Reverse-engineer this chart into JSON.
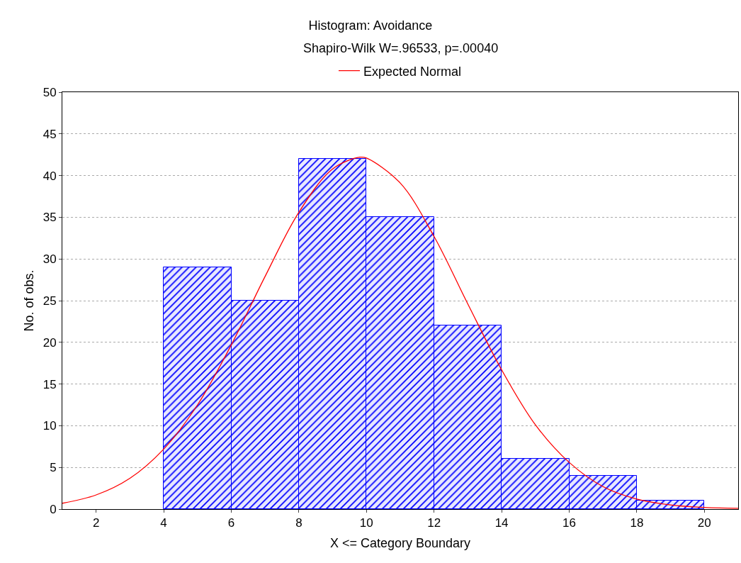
{
  "chart_data": {
    "type": "histogram",
    "title": "Histogram: Avoidance",
    "subtitle": "Shapiro-Wilk W=.96533, p=.00040",
    "xlabel": "X <= Category Boundary",
    "ylabel": "No. of obs.",
    "bins": [
      4,
      6,
      8,
      10,
      12,
      14,
      16,
      18,
      20
    ],
    "values": [
      29,
      25,
      42,
      35,
      22,
      6,
      4,
      1
    ],
    "color": "#0000ff",
    "series": [
      {
        "type": "line",
        "name": "Expected Normal",
        "color": "#ff0000",
        "x": [
          1,
          2,
          3,
          4,
          5,
          6,
          7,
          8,
          9,
          9.8,
          10,
          11,
          12,
          13,
          14,
          15,
          16,
          17,
          18,
          19,
          20,
          21
        ],
        "values": [
          0.7,
          1.7,
          3.7,
          7.2,
          12.5,
          19.7,
          27.9,
          35.6,
          40.8,
          42.2,
          42.1,
          39.1,
          32.7,
          24.6,
          16.7,
          10.1,
          5.6,
          2.7,
          1.2,
          0.5,
          0.2,
          0.1
        ]
      }
    ],
    "xlim": [
      1,
      21
    ],
    "xticks": [
      2,
      4,
      6,
      8,
      10,
      12,
      14,
      16,
      18,
      20
    ],
    "ylim": [
      0,
      50
    ],
    "yticks": [
      0,
      5,
      10,
      15,
      20,
      25,
      30,
      35,
      40,
      45,
      50
    ],
    "grid": "y",
    "legend": "top",
    "line_style": "solid",
    "marker": "none"
  }
}
